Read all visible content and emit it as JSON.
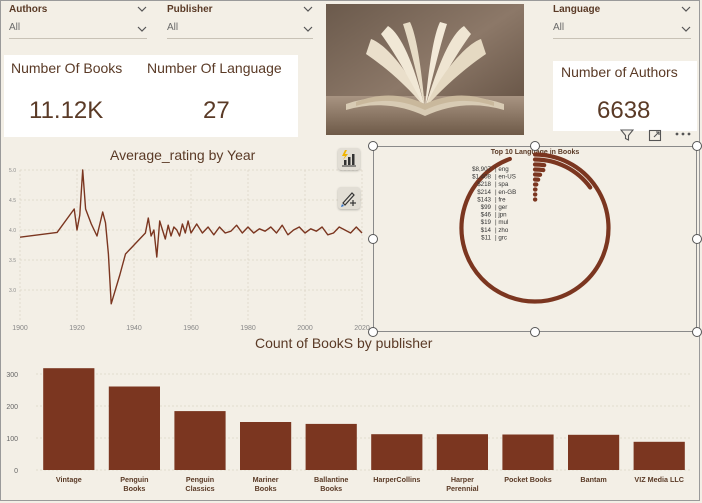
{
  "slicers": {
    "authors": {
      "label": "Authors",
      "value": "All"
    },
    "publisher": {
      "label": "Publisher",
      "value": "All"
    },
    "language": {
      "label": "Language",
      "value": "All"
    }
  },
  "kpis": {
    "books": {
      "title": "Number Of Books",
      "value": "11.12K"
    },
    "languages": {
      "title": "Number Of Language",
      "value": "27"
    },
    "authors": {
      "title": "Number of Authors",
      "value": "6638"
    }
  },
  "colors": {
    "accent": "#7b3620",
    "text": "#5a3a26",
    "background": "#f3efe6"
  },
  "visual_header_icons": [
    "filter-icon",
    "focus-mode-icon",
    "more-options-icon"
  ],
  "chart_data": [
    {
      "type": "line",
      "title": "Average_rating by Year",
      "xlabel": "",
      "ylabel": "",
      "xlim": [
        1900,
        2020
      ],
      "ylim": [
        2.5,
        5.0
      ],
      "x_ticks": [
        "1900",
        "1920",
        "1940",
        "1960",
        "1980",
        "2000",
        "2020"
      ],
      "y_ticks": [
        "5.0",
        "4.5",
        "4.0",
        "3.5",
        "3.0"
      ],
      "grid": true,
      "x": [
        1900,
        1913,
        1919,
        1920,
        1921,
        1922,
        1923,
        1925,
        1927,
        1929,
        1930,
        1931,
        1932,
        1935,
        1937,
        1939,
        1942,
        1944,
        1945,
        1946,
        1947,
        1948,
        1949,
        1950,
        1951,
        1952,
        1953,
        1954,
        1955,
        1956,
        1957,
        1958,
        1959,
        1960,
        1962,
        1964,
        1966,
        1968,
        1970,
        1972,
        1974,
        1976,
        1978,
        1980,
        1982,
        1984,
        1986,
        1988,
        1990,
        1992,
        1994,
        1996,
        1998,
        2000,
        2002,
        2004,
        2006,
        2008,
        2010,
        2012,
        2014,
        2016,
        2018,
        2020
      ],
      "y": [
        3.88,
        3.96,
        4.35,
        4.0,
        4.25,
        5.0,
        4.35,
        4.1,
        3.9,
        4.3,
        4.12,
        3.6,
        2.77,
        3.25,
        3.6,
        3.7,
        3.85,
        3.95,
        4.2,
        3.9,
        4.0,
        3.55,
        4.15,
        4.0,
        3.85,
        4.08,
        3.9,
        4.05,
        4.0,
        3.9,
        4.1,
        3.95,
        4.15,
        3.95,
        4.1,
        3.95,
        4.05,
        3.92,
        4.05,
        3.95,
        3.98,
        4.08,
        3.95,
        4.05,
        3.95,
        4.02,
        3.98,
        4.05,
        3.95,
        4.08,
        3.92,
        4.0,
        4.05,
        3.95,
        4.02,
        3.98,
        4.05,
        3.92,
        3.95,
        4.05,
        4.0,
        3.95,
        4.05,
        3.95
      ]
    },
    {
      "type": "radial-bar",
      "title": "Top 10 Language in Books",
      "categories": [
        "eng",
        "en-US",
        "spa",
        "en-GB",
        "fre",
        "ger",
        "jpn",
        "mul",
        "zho",
        "grc"
      ],
      "values": [
        8907,
        1408,
        218,
        214,
        143,
        99,
        46,
        19,
        14,
        11
      ],
      "labels": [
        "$8,907",
        "$1,408",
        "$218",
        "$214",
        "$143",
        "$99",
        "$46",
        "$19",
        "$14",
        "$11"
      ]
    },
    {
      "type": "bar",
      "title": "Count of BookS by publisher",
      "categories": [
        "Vintage",
        "Penguin Books",
        "Penguin Classics",
        "Mariner Books",
        "Ballantine Books",
        "HarperCollins",
        "Harper Perennial",
        "Pocket Books",
        "Bantam",
        "VIZ Media LLC"
      ],
      "values": [
        318,
        261,
        184,
        150,
        144,
        112,
        112,
        111,
        110,
        88
      ],
      "ylim": [
        0,
        350
      ],
      "y_ticks": [
        "0",
        "100",
        "200",
        "300"
      ]
    }
  ]
}
